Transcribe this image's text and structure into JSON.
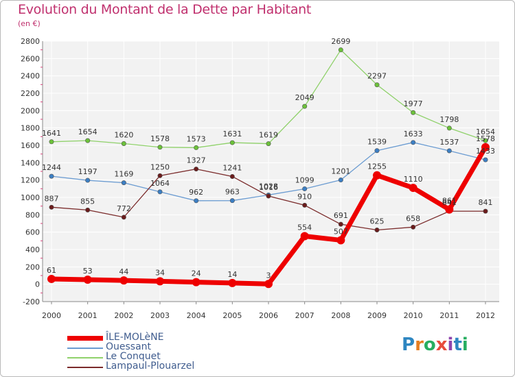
{
  "title": "Evolution du Montant de la Dette par Habitant",
  "subtitle": "(en €)",
  "brand": {
    "text": "Proxiti",
    "letter_colors": [
      "#2e86c1",
      "#e67e22",
      "#27ae60",
      "#e74c3c",
      "#8e44ad",
      "#2e86c1",
      "#27ae60"
    ]
  },
  "chart_data": {
    "type": "line",
    "x": [
      "2000",
      "2001",
      "2002",
      "2003",
      "2004",
      "2005",
      "2006",
      "2007",
      "2008",
      "2009",
      "2010",
      "2011",
      "2012"
    ],
    "ylim": [
      -200,
      2800
    ],
    "yticks": [
      -200,
      0,
      200,
      400,
      600,
      800,
      1000,
      1200,
      1400,
      1600,
      1800,
      2000,
      2200,
      2400,
      2600,
      2800
    ],
    "grid": true,
    "legend_position": "bottom-left",
    "series": [
      {
        "name": "ÎLE-MOLèNE",
        "color": "#ee0000",
        "marker": "#ee0000",
        "width": 7,
        "values": [
          61,
          53,
          44,
          34,
          24,
          14,
          3,
          554,
          507,
          1255,
          1110,
          861,
          1578
        ]
      },
      {
        "name": "Ouessant",
        "color": "#6a9bd1",
        "marker": "#3c7fc4",
        "width": 1.3,
        "values": [
          1244,
          1197,
          1169,
          1064,
          962,
          963,
          1028,
          1099,
          1201,
          1539,
          1633,
          1537,
          1433
        ]
      },
      {
        "name": "Le Conquet",
        "color": "#8fd16a",
        "marker": "#6cc23a",
        "width": 1.3,
        "values": [
          1641,
          1654,
          1620,
          1578,
          1573,
          1631,
          1619,
          2049,
          2699,
          2297,
          1977,
          1798,
          1654
        ]
      },
      {
        "name": "Lampaul-Plouarzel",
        "color": "#7a2a2a",
        "marker": "#6b1c1c",
        "width": 1.3,
        "values": [
          887,
          855,
          772,
          1250,
          1327,
          1241,
          1016,
          910,
          691,
          625,
          658,
          841,
          841
        ]
      }
    ]
  }
}
